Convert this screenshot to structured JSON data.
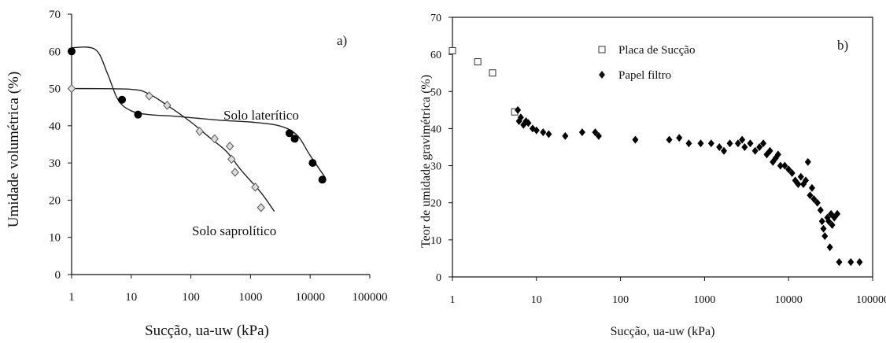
{
  "chart_data": [
    {
      "type": "scatter",
      "panel_label": "a)",
      "xlabel": "Sucção, ua-uw (kPa)",
      "ylabel": "Umidade volumétrica (%)",
      "x_scale": "log",
      "xlim": [
        1,
        100000
      ],
      "ylim": [
        0,
        70
      ],
      "x_ticks": [
        "1",
        "10",
        "100",
        "1000",
        "10000",
        "100000"
      ],
      "y_ticks": [
        "0",
        "10",
        "20",
        "30",
        "40",
        "50",
        "60",
        "70"
      ],
      "annotations": [
        "Solo laterítico",
        "Solo saprolítico"
      ],
      "series": [
        {
          "name": "Solo laterítico",
          "marker": "filled-circle",
          "points": [
            [
              1,
              60
            ],
            [
              7,
              47
            ],
            [
              13,
              43
            ],
            [
              4500,
              38
            ],
            [
              5500,
              36.5
            ],
            [
              11000,
              30
            ],
            [
              16000,
              25.5
            ]
          ],
          "fit": [
            [
              1,
              61
            ],
            [
              2.5,
              60.5
            ],
            [
              4,
              54
            ],
            [
              6,
              47
            ],
            [
              10,
              44
            ],
            [
              20,
              43
            ],
            [
              60,
              42.5
            ],
            [
              300,
              41.5
            ],
            [
              1000,
              41
            ],
            [
              3000,
              40
            ],
            [
              6000,
              37.5
            ],
            [
              10000,
              32
            ],
            [
              18000,
              26
            ]
          ]
        },
        {
          "name": "Solo saprolítico",
          "marker": "open-diamond",
          "points": [
            [
              1,
              50
            ],
            [
              20,
              48
            ],
            [
              40,
              45.5
            ],
            [
              140,
              38.5
            ],
            [
              250,
              36.5
            ],
            [
              450,
              34.5
            ],
            [
              480,
              31
            ],
            [
              550,
              27.5
            ],
            [
              1200,
              23.5
            ],
            [
              1500,
              18
            ]
          ],
          "fit": [
            [
              1,
              50
            ],
            [
              10,
              49.8
            ],
            [
              20,
              48.5
            ],
            [
              40,
              45.5
            ],
            [
              100,
              41
            ],
            [
              200,
              37
            ],
            [
              400,
              33
            ],
            [
              700,
              28
            ],
            [
              1500,
              22
            ],
            [
              2500,
              17
            ]
          ]
        }
      ]
    },
    {
      "type": "scatter",
      "panel_label": "b)",
      "xlabel": "Sucção, ua-uw (kPa)",
      "ylabel": "Teor de umidade gravimétrica (%)",
      "x_scale": "log",
      "xlim": [
        1,
        100000
      ],
      "ylim": [
        0,
        70
      ],
      "x_ticks": [
        "1",
        "10",
        "100",
        "1000",
        "10000",
        "100000"
      ],
      "y_ticks": [
        "0",
        "10",
        "20",
        "30",
        "40",
        "50",
        "60",
        "70"
      ],
      "legend_position": "top-center",
      "series": [
        {
          "name": "Placa de Sucção",
          "marker": "open-square",
          "points": [
            [
              1,
              61
            ],
            [
              2,
              58
            ],
            [
              3,
              55
            ],
            [
              5.5,
              44.5
            ]
          ]
        },
        {
          "name": "Papel filtro",
          "marker": "filled-diamond",
          "points": [
            [
              6,
              45
            ],
            [
              6.2,
              42
            ],
            [
              6.5,
              43
            ],
            [
              7,
              41
            ],
            [
              7.5,
              42
            ],
            [
              8,
              41.5
            ],
            [
              9,
              40
            ],
            [
              10,
              39.5
            ],
            [
              12,
              39
            ],
            [
              14,
              38.5
            ],
            [
              22,
              38
            ],
            [
              35,
              39
            ],
            [
              50,
              39
            ],
            [
              55,
              38
            ],
            [
              150,
              37
            ],
            [
              380,
              37
            ],
            [
              500,
              37.5
            ],
            [
              650,
              36
            ],
            [
              900,
              36
            ],
            [
              1200,
              36
            ],
            [
              1500,
              35
            ],
            [
              1700,
              34
            ],
            [
              2000,
              36
            ],
            [
              2500,
              36
            ],
            [
              2800,
              37
            ],
            [
              3000,
              35
            ],
            [
              3500,
              36
            ],
            [
              4000,
              34
            ],
            [
              4500,
              35
            ],
            [
              5000,
              36
            ],
            [
              5500,
              33
            ],
            [
              6000,
              34
            ],
            [
              6500,
              31
            ],
            [
              7000,
              32
            ],
            [
              7500,
              33
            ],
            [
              8000,
              30
            ],
            [
              9000,
              30
            ],
            [
              10000,
              29
            ],
            [
              11000,
              28
            ],
            [
              12000,
              26
            ],
            [
              13000,
              25
            ],
            [
              14000,
              27
            ],
            [
              15000,
              25
            ],
            [
              16000,
              26
            ],
            [
              17000,
              31
            ],
            [
              18000,
              22
            ],
            [
              19000,
              24
            ],
            [
              20000,
              21
            ],
            [
              22000,
              20
            ],
            [
              24000,
              18
            ],
            [
              25000,
              15
            ],
            [
              26000,
              13
            ],
            [
              27000,
              11
            ],
            [
              29000,
              16
            ],
            [
              30000,
              15
            ],
            [
              31000,
              8
            ],
            [
              32000,
              17
            ],
            [
              33000,
              14
            ],
            [
              35000,
              16
            ],
            [
              38000,
              17
            ],
            [
              40000,
              4
            ],
            [
              55000,
              4
            ],
            [
              70000,
              4
            ]
          ]
        }
      ]
    }
  ]
}
